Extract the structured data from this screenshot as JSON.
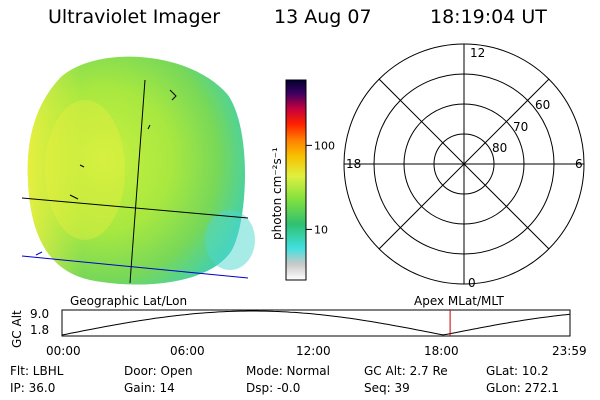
{
  "header": {
    "instrument": "Ultraviolet Imager",
    "date": "13 Aug 07",
    "time": "18:19:04 UT"
  },
  "colorbar": {
    "unit_label": "photon cm⁻²s⁻¹",
    "ticks": [
      {
        "value": 10,
        "label": "10"
      },
      {
        "value": 100,
        "label": "100"
      }
    ],
    "range": [
      2.5,
      600
    ],
    "scale": "log",
    "colors": [
      "#ffffff",
      "#c8c8c8",
      "#40e0e0",
      "#30c070",
      "#80e040",
      "#e0f040",
      "#f8c000",
      "#ff8000",
      "#ff2000",
      "#c00040",
      "#400060",
      "#000030"
    ]
  },
  "polar_plot": {
    "mlt_labels": {
      "top": "12",
      "left": "18",
      "right": "6",
      "bottom": "0"
    },
    "lat_labels": [
      "60",
      "70",
      "80"
    ]
  },
  "mini_plot": {
    "left_title": "Geographic Lat/Lon",
    "right_title": "Apex MLat/MLT",
    "ylabel": "GC Alt",
    "yticks": [
      "9.0",
      "1.8"
    ],
    "xticks": [
      "00:00",
      "06:00",
      "12:00",
      "18:00",
      "23:59"
    ],
    "orbit_start": 0.0,
    "orbit_end": 23.98,
    "low_point": 18.0,
    "marker_time": 18.32,
    "marker_color": "#cc0000"
  },
  "info": {
    "flt": "Flt: LBHL",
    "ip": "IP: 36.0",
    "door": "Door: Open",
    "gain": "Gain: 14",
    "mode": "Mode: Normal",
    "dsp": "Dsp:    -0.0",
    "gcalt": "GC Alt: 2.7 Re",
    "seq": "Seq: 39",
    "glat": "GLat:  10.2",
    "glon": "GLon: 272.1"
  }
}
